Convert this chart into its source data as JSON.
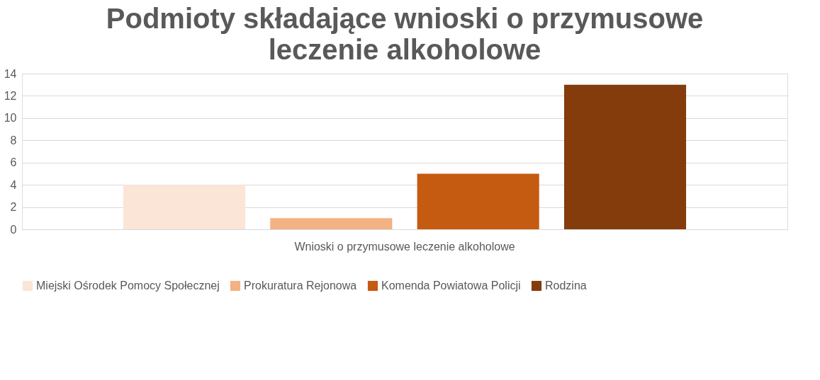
{
  "chart_data": {
    "type": "bar",
    "title": "Podmioty składające wnioski o przymusowe leczenie alkoholowe",
    "categories": [
      "Wnioski o przymusowe leczenie alkoholowe"
    ],
    "series": [
      {
        "name": "Miejski Ośrodek Pomocy Społecznej",
        "color": "#fbe5d6",
        "values": [
          4
        ]
      },
      {
        "name": "Prokuratura Rejonowa",
        "color": "#f4b183",
        "values": [
          1
        ]
      },
      {
        "name": "Komenda Powiatowa Policji",
        "color": "#c55a11",
        "values": [
          5
        ]
      },
      {
        "name": "Rodzina",
        "color": "#843c0c",
        "values": [
          13
        ]
      }
    ],
    "ylim": [
      0,
      14
    ],
    "yticks": [
      0,
      2,
      4,
      6,
      8,
      10,
      12,
      14
    ],
    "grid": "y",
    "legend": "bottom"
  }
}
